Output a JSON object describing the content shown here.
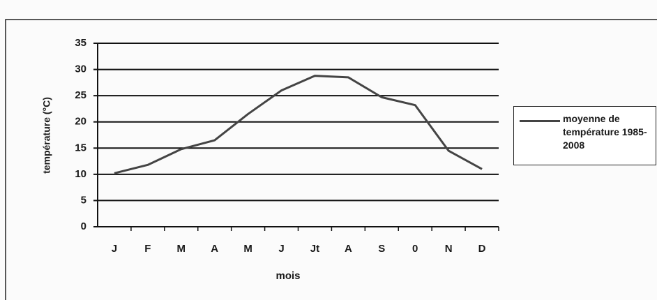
{
  "chart_data": {
    "type": "line",
    "categories": [
      "J",
      "F",
      "M",
      "A",
      "M",
      "J",
      "Jt",
      "A",
      "S",
      "0",
      "N",
      "D"
    ],
    "series": [
      {
        "name": "moyenne de température 1985-2008",
        "color": "#444444",
        "values": [
          10.2,
          11.8,
          14.8,
          16.5,
          21.5,
          26,
          28.8,
          28.5,
          24.7,
          23.2,
          14.5,
          11
        ]
      }
    ],
    "xlabel": "mois",
    "ylabel": "température (°C)",
    "ylim": [
      0,
      35
    ],
    "yticks": [
      0,
      5,
      10,
      15,
      20,
      25,
      30,
      35
    ],
    "grid": true,
    "legend": "right"
  }
}
